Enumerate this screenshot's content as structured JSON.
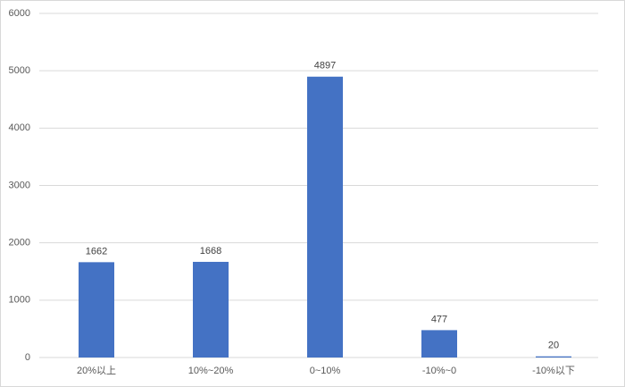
{
  "chart_data": {
    "type": "bar",
    "categories": [
      "20%以上",
      "10%~20%",
      "0~10%",
      "-10%~0",
      "-10%以下"
    ],
    "values": [
      1662,
      1668,
      4897,
      477,
      20
    ],
    "color": "#4472c4",
    "ylim": [
      0,
      6000
    ],
    "yticks": [
      0,
      1000,
      2000,
      3000,
      4000,
      5000,
      6000
    ],
    "grid": true,
    "data_labels": true
  }
}
